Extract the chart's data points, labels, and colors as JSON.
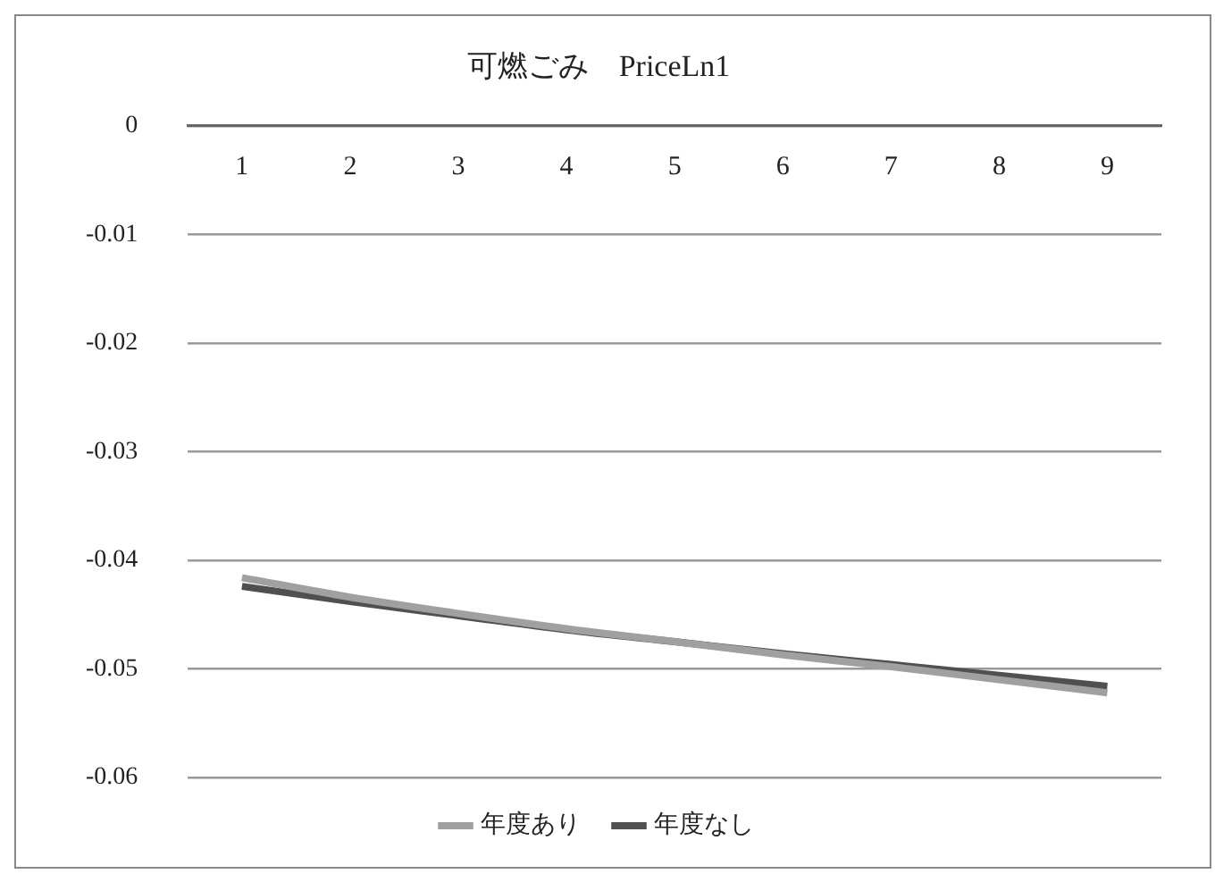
{
  "chart_data": {
    "type": "line",
    "title": "可燃ごみ　PriceLn1",
    "categories": [
      "1",
      "2",
      "3",
      "4",
      "5",
      "6",
      "7",
      "8",
      "9"
    ],
    "series": [
      {
        "name": "年度あり",
        "color": "#a0a0a0",
        "values": [
          -0.0416,
          -0.0434,
          -0.0449,
          -0.0463,
          -0.0475,
          -0.0487,
          -0.0498,
          -0.051,
          -0.0522
        ]
      },
      {
        "name": "年度なし",
        "color": "#505050",
        "values": [
          -0.0424,
          -0.0438,
          -0.0451,
          -0.0464,
          -0.0475,
          -0.0486,
          -0.0496,
          -0.0506,
          -0.0516
        ]
      }
    ],
    "ylim": [
      -0.06,
      0
    ],
    "yticks": [
      0,
      -0.01,
      -0.02,
      -0.03,
      -0.04,
      -0.05,
      -0.06
    ],
    "grid": "y",
    "legend": "bottom",
    "marker": "none",
    "line_style": "solid"
  }
}
